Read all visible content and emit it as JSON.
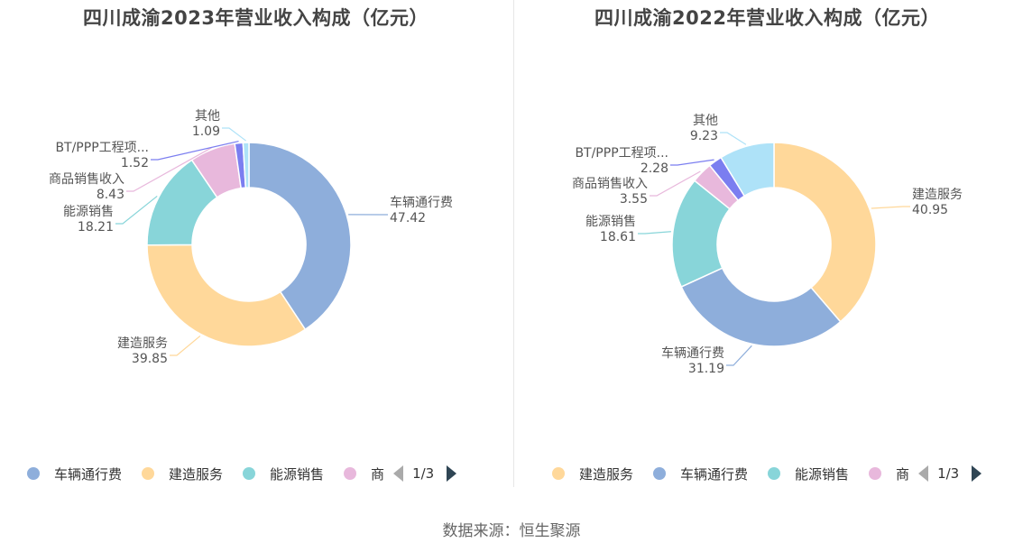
{
  "chart_data": [
    {
      "type": "pie",
      "title": "四川成渝2023年营业收入构成（亿元）",
      "series": [
        {
          "name": "车辆通行费",
          "value": 47.42,
          "color": "#8eaedb"
        },
        {
          "name": "建造服务",
          "value": 39.85,
          "color": "#ffd89a"
        },
        {
          "name": "能源销售",
          "value": 18.21,
          "color": "#88d5d9"
        },
        {
          "name": "商品销售收入",
          "value": 8.43,
          "color": "#e8b8dc"
        },
        {
          "name": "BT/PPP工程项...",
          "value": 1.52,
          "color": "#7b7ef0"
        },
        {
          "name": "其他",
          "value": 1.09,
          "color": "#aee2f8"
        }
      ],
      "legend": {
        "placement": "bottom",
        "entries": [
          "车辆通行费",
          "建造服务",
          "能源销售",
          "商"
        ],
        "page": "1/3"
      }
    },
    {
      "type": "pie",
      "title": "四川成渝2022年营业收入构成（亿元）",
      "series": [
        {
          "name": "建造服务",
          "value": 40.95,
          "color": "#ffd89a"
        },
        {
          "name": "车辆通行费",
          "value": 31.19,
          "color": "#8eaedb"
        },
        {
          "name": "能源销售",
          "value": 18.61,
          "color": "#88d5d9"
        },
        {
          "name": "商品销售收入",
          "value": 3.55,
          "color": "#e8b8dc"
        },
        {
          "name": "BT/PPP工程项...",
          "value": 2.28,
          "color": "#7b7ef0"
        },
        {
          "name": "其他",
          "value": 9.23,
          "color": "#aee2f8"
        }
      ],
      "legend": {
        "placement": "bottom",
        "entries": [
          "建造服务",
          "车辆通行费",
          "能源销售",
          "商"
        ],
        "page": "1/3"
      }
    }
  ],
  "source": "数据来源：恒生聚源"
}
